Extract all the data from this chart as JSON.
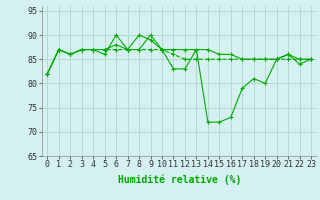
{
  "xlabel": "Humidité relative (%)",
  "xlim": [
    -0.5,
    23.5
  ],
  "ylim": [
    65,
    96
  ],
  "yticks": [
    65,
    70,
    75,
    80,
    85,
    90,
    95
  ],
  "xticks": [
    0,
    1,
    2,
    3,
    4,
    5,
    6,
    7,
    8,
    9,
    10,
    11,
    12,
    13,
    14,
    15,
    16,
    17,
    18,
    19,
    20,
    21,
    22,
    23
  ],
  "bg_color": "#d4f0f0",
  "grid_color": "#b0d8cc",
  "line_color": "#00aa00",
  "line1": [
    82,
    87,
    86,
    87,
    87,
    86,
    90,
    87,
    87,
    90,
    87,
    83,
    83,
    87,
    72,
    72,
    73,
    79,
    81,
    80,
    85,
    86,
    84,
    85
  ],
  "line2": [
    82,
    87,
    86,
    87,
    87,
    87,
    87,
    87,
    87,
    87,
    87,
    86,
    85,
    85,
    85,
    85,
    85,
    85,
    85,
    85,
    85,
    85,
    85,
    85
  ],
  "line3": [
    82,
    87,
    86,
    87,
    87,
    87,
    88,
    87,
    90,
    89,
    87,
    87,
    87,
    87,
    87,
    86,
    86,
    85,
    85,
    85,
    85,
    86,
    85,
    85
  ],
  "tick_fontsize": 6,
  "xlabel_fontsize": 7
}
